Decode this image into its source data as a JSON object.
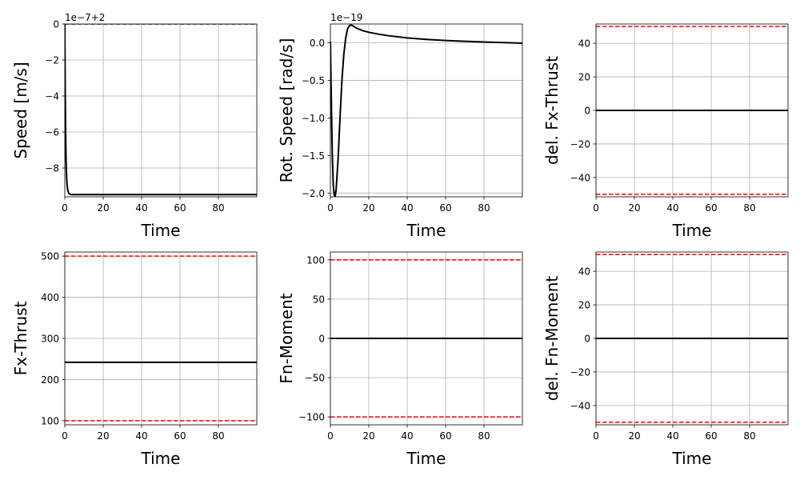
{
  "colors": {
    "data_line": "#000000",
    "limit_line": "#ff0000",
    "reference_line": "#00008b",
    "grid": "#b0b0b0",
    "frame": "#000000"
  },
  "chart_data": [
    {
      "type": "line",
      "xlabel": "Time",
      "ylabel": "Speed [m/s]",
      "offset_text": "1e−7+2",
      "xlim": [
        0,
        100
      ],
      "ylim": [
        -9.6,
        0
      ],
      "xticks": [
        0,
        20,
        40,
        60,
        80
      ],
      "xtick_labels": [
        "0",
        "20",
        "40",
        "60",
        "80"
      ],
      "yticks": [
        0,
        -2,
        -4,
        -6,
        -8
      ],
      "ytick_labels": [
        "0",
        "−2",
        "−4",
        "−6",
        "−8"
      ],
      "grid": true,
      "series": [
        {
          "style": "data",
          "x": [
            0,
            0.2,
            0.4,
            0.6,
            0.8,
            1.0,
            1.2,
            1.5,
            2,
            2.5,
            3,
            5,
            10,
            20,
            40,
            60,
            80,
            100
          ],
          "y": [
            0,
            -3.5,
            -5.8,
            -7.2,
            -8.1,
            -8.6,
            -8.95,
            -9.2,
            -9.4,
            -9.45,
            -9.47,
            -9.48,
            -9.48,
            -9.48,
            -9.48,
            -9.48,
            -9.48,
            -9.48
          ]
        },
        {
          "style": "reference",
          "x": [
            0,
            100
          ],
          "y": [
            0,
            0
          ]
        }
      ]
    },
    {
      "type": "line",
      "xlabel": "Time",
      "ylabel": "Rot. Speed [rad/s]",
      "offset_text": "1e−19",
      "xlim": [
        0,
        100
      ],
      "ylim": [
        -2.05,
        0.25
      ],
      "xticks": [
        0,
        20,
        40,
        60,
        80
      ],
      "xtick_labels": [
        "0",
        "20",
        "40",
        "60",
        "80"
      ],
      "yticks": [
        0,
        -0.5,
        -1.0,
        -1.5,
        -2.0
      ],
      "ytick_labels": [
        "0.0",
        "−0.5",
        "−1.0",
        "−1.5",
        "−2.0"
      ],
      "grid": true,
      "series": [
        {
          "style": "data",
          "x": [
            0,
            0.5,
            1,
            1.5,
            2,
            2.5,
            3,
            4,
            5,
            6,
            7,
            8,
            9,
            10,
            11,
            12,
            14,
            17,
            20,
            25,
            30,
            40,
            50,
            60,
            70,
            80,
            90,
            100
          ],
          "y": [
            0.02,
            -0.8,
            -1.5,
            -1.9,
            -2.03,
            -2.04,
            -1.95,
            -1.55,
            -1.0,
            -0.5,
            -0.15,
            0.07,
            0.19,
            0.23,
            0.235,
            0.22,
            0.19,
            0.16,
            0.14,
            0.115,
            0.095,
            0.065,
            0.045,
            0.03,
            0.02,
            0.01,
            0.003,
            -0.005
          ]
        }
      ]
    },
    {
      "type": "line",
      "xlabel": "Time",
      "ylabel": "del. Fx-Thrust",
      "offset_text": "",
      "xlim": [
        0,
        100
      ],
      "ylim": [
        -51.5,
        51.5
      ],
      "xticks": [
        0,
        20,
        40,
        60,
        80
      ],
      "xtick_labels": [
        "0",
        "20",
        "40",
        "60",
        "80"
      ],
      "yticks": [
        40,
        20,
        0,
        -20,
        -40
      ],
      "ytick_labels": [
        "40",
        "20",
        "0",
        "−20",
        "−40"
      ],
      "grid": true,
      "series": [
        {
          "style": "data",
          "x": [
            0,
            100
          ],
          "y": [
            0,
            0
          ]
        },
        {
          "style": "limit",
          "x": [
            0,
            100
          ],
          "y": [
            50,
            50
          ]
        },
        {
          "style": "limit",
          "x": [
            0,
            100
          ],
          "y": [
            -50,
            -50
          ]
        }
      ]
    },
    {
      "type": "line",
      "xlabel": "Time",
      "ylabel": "Fx-Thrust",
      "offset_text": "",
      "xlim": [
        0,
        100
      ],
      "ylim": [
        90,
        510
      ],
      "xticks": [
        0,
        20,
        40,
        60,
        80
      ],
      "xtick_labels": [
        "0",
        "20",
        "40",
        "60",
        "80"
      ],
      "yticks": [
        500,
        400,
        300,
        200,
        100
      ],
      "ytick_labels": [
        "500",
        "400",
        "300",
        "200",
        "100"
      ],
      "grid": true,
      "series": [
        {
          "style": "data",
          "x": [
            0,
            100
          ],
          "y": [
            242,
            242
          ]
        },
        {
          "style": "limit",
          "x": [
            0,
            100
          ],
          "y": [
            500,
            500
          ]
        },
        {
          "style": "limit",
          "x": [
            0,
            100
          ],
          "y": [
            100,
            100
          ]
        }
      ]
    },
    {
      "type": "line",
      "xlabel": "Time",
      "ylabel": "Fn-Moment",
      "offset_text": "",
      "xlim": [
        0,
        100
      ],
      "ylim": [
        -110,
        110
      ],
      "xticks": [
        0,
        20,
        40,
        60,
        80
      ],
      "xtick_labels": [
        "0",
        "20",
        "40",
        "60",
        "80"
      ],
      "yticks": [
        100,
        50,
        0,
        -50,
        -100
      ],
      "ytick_labels": [
        "100",
        "50",
        "0",
        "−50",
        "−100"
      ],
      "grid": true,
      "series": [
        {
          "style": "data",
          "x": [
            0,
            100
          ],
          "y": [
            0,
            0
          ]
        },
        {
          "style": "limit",
          "x": [
            0,
            100
          ],
          "y": [
            100,
            100
          ]
        },
        {
          "style": "limit",
          "x": [
            0,
            100
          ],
          "y": [
            -100,
            -100
          ]
        }
      ]
    },
    {
      "type": "line",
      "xlabel": "Time",
      "ylabel": "del. Fn-Moment",
      "offset_text": "",
      "xlim": [
        0,
        100
      ],
      "ylim": [
        -51.5,
        51.5
      ],
      "xticks": [
        0,
        20,
        40,
        60,
        80
      ],
      "xtick_labels": [
        "0",
        "20",
        "40",
        "60",
        "80"
      ],
      "yticks": [
        40,
        20,
        0,
        -20,
        -40
      ],
      "ytick_labels": [
        "40",
        "20",
        "0",
        "−20",
        "−40"
      ],
      "grid": true,
      "series": [
        {
          "style": "data",
          "x": [
            0,
            100
          ],
          "y": [
            0,
            0
          ]
        },
        {
          "style": "limit",
          "x": [
            0,
            100
          ],
          "y": [
            50,
            50
          ]
        },
        {
          "style": "limit",
          "x": [
            0,
            100
          ],
          "y": [
            -50,
            -50
          ]
        }
      ]
    }
  ]
}
